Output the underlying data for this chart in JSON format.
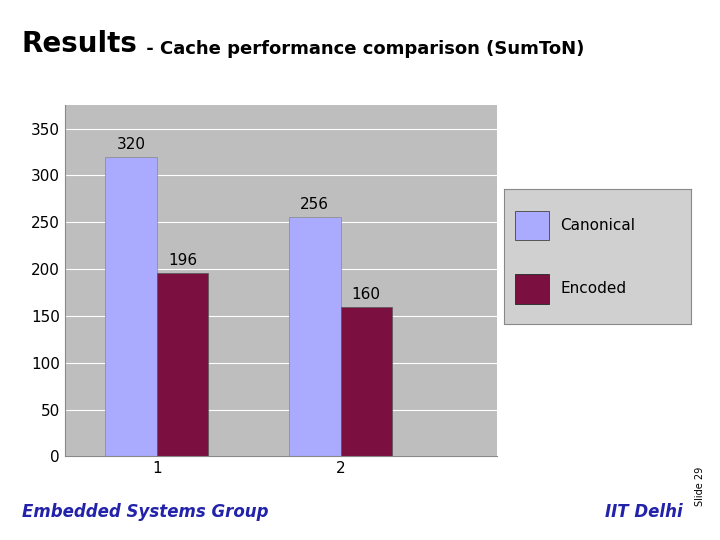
{
  "title_bold": "Results",
  "title_rest": " - Cache performance comparison (SumToN)",
  "categories": [
    "1",
    "2"
  ],
  "canonical_values": [
    320,
    256
  ],
  "encoded_values": [
    196,
    160
  ],
  "canonical_color": "#aaaaff",
  "encoded_color": "#7b1040",
  "bar_width": 0.28,
  "ylim": [
    0,
    375
  ],
  "yticks": [
    0,
    50,
    100,
    150,
    200,
    250,
    300,
    350
  ],
  "chart_bg": "#bebebe",
  "slide_bg": "#ffffff",
  "legend_labels": [
    "Canonical",
    "Encoded"
  ],
  "legend_bg": "#d0d0d0",
  "footer_left": "Embedded Systems Group",
  "footer_right": "IIT Delhi",
  "slide_label": "Slide 29",
  "footer_color": "#2222aa",
  "footer_line_color": "#e8a000",
  "title_bold_fontsize": 20,
  "title_rest_fontsize": 13,
  "axis_fontsize": 11,
  "bar_label_fontsize": 11,
  "legend_fontsize": 11,
  "footer_fontsize": 12,
  "slide_fontsize": 7
}
